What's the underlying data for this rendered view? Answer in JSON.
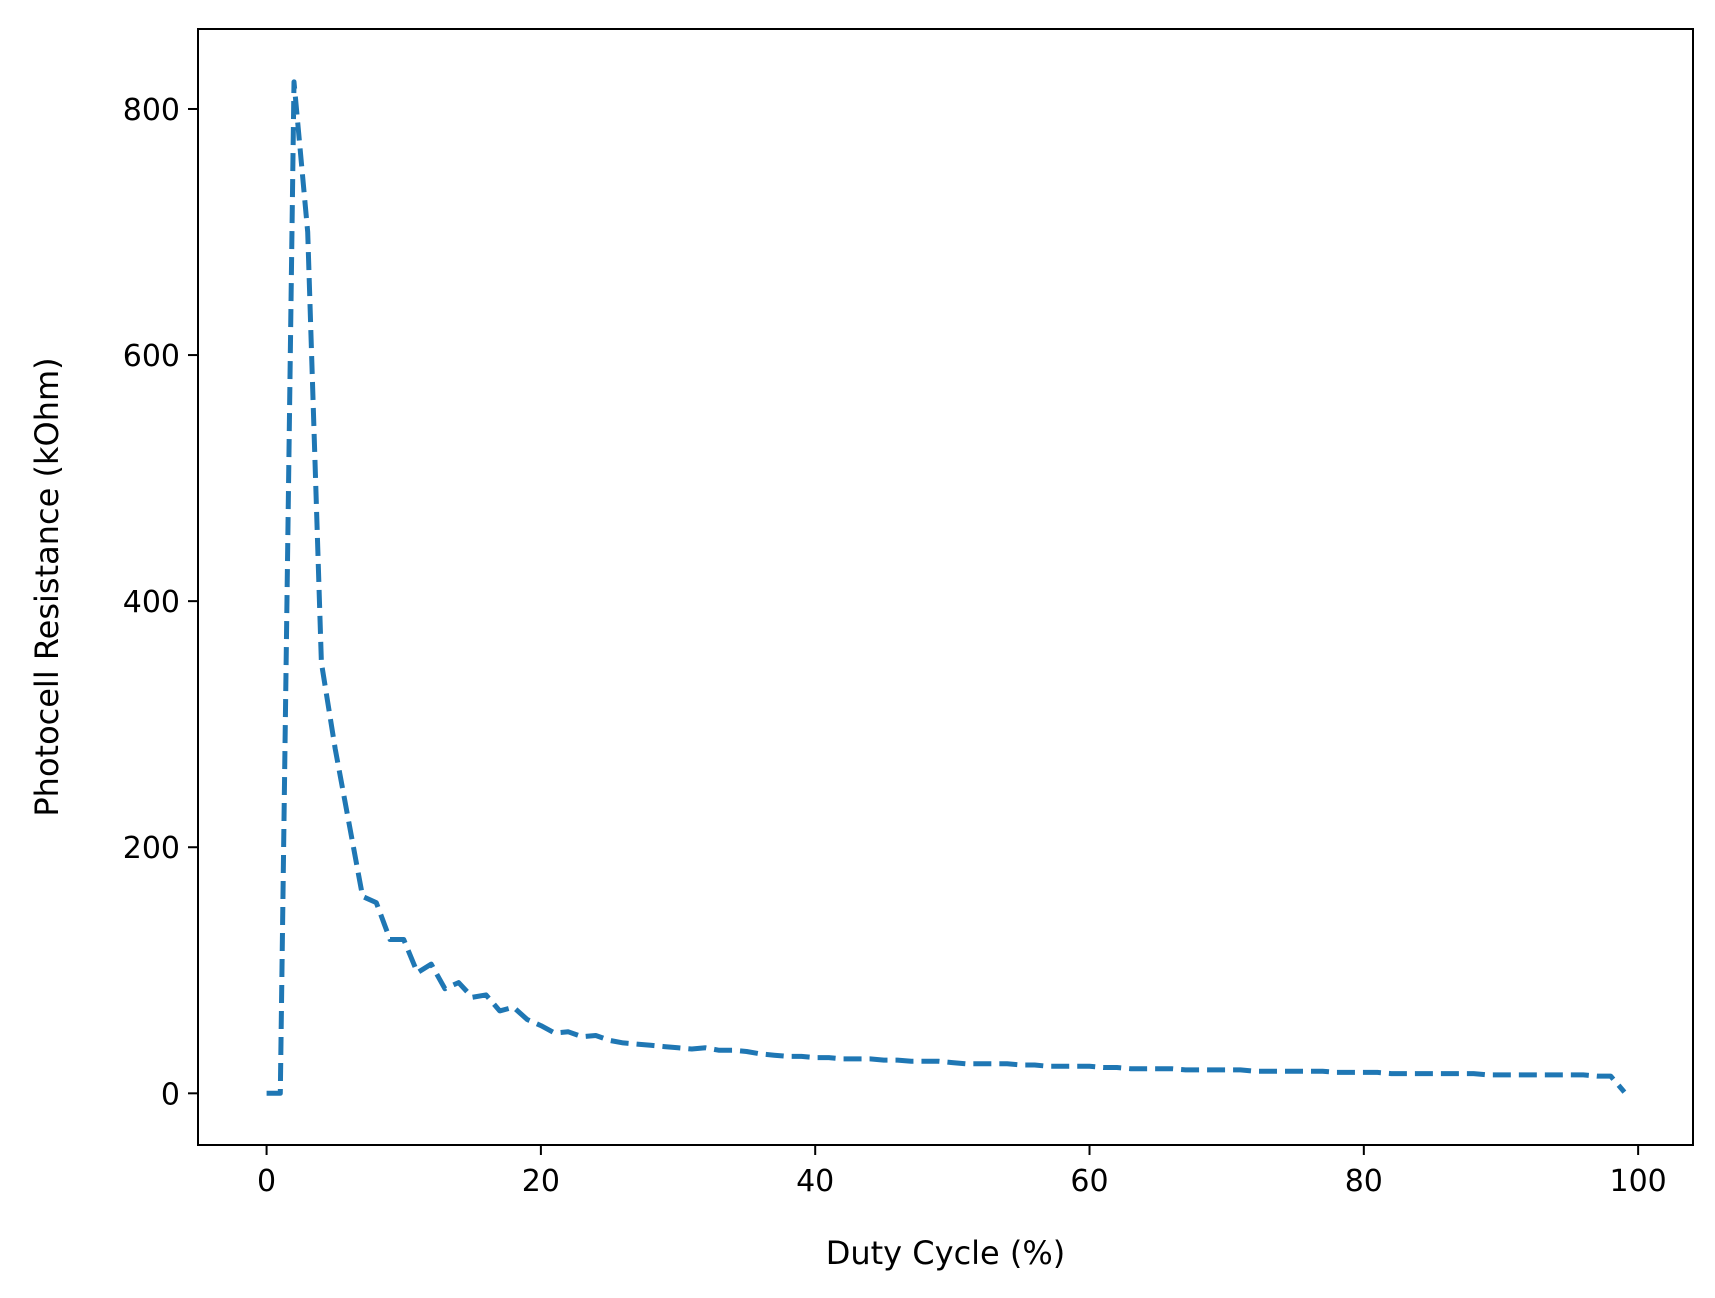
{
  "chart_data": {
    "type": "line",
    "title": "",
    "xlabel": "Duty Cycle (%)",
    "ylabel": "Photocell Resistance (kOhm)",
    "xlim": [
      -5,
      104
    ],
    "ylim": [
      -42,
      865
    ],
    "xticks": [
      0,
      20,
      40,
      60,
      80,
      100
    ],
    "yticks": [
      0,
      200,
      400,
      600,
      800
    ],
    "grid": false,
    "legend": "none",
    "line_style": "dashed",
    "colors": {
      "line": "#1f77b4",
      "axes": "#000000",
      "background": "#ffffff"
    },
    "series": [
      {
        "x": [
          0,
          1,
          2,
          3,
          4,
          5,
          6,
          7,
          8,
          9,
          10,
          11,
          12,
          13,
          14,
          15,
          16,
          17,
          18,
          19,
          20,
          21,
          22,
          23,
          24,
          25,
          26,
          27,
          28,
          29,
          30,
          31,
          32,
          33,
          34,
          35,
          36,
          37,
          38,
          39,
          40,
          41,
          42,
          43,
          44,
          45,
          46,
          47,
          48,
          49,
          50,
          51,
          52,
          53,
          54,
          55,
          56,
          57,
          58,
          59,
          60,
          61,
          62,
          63,
          64,
          65,
          66,
          67,
          68,
          69,
          70,
          71,
          72,
          73,
          74,
          75,
          76,
          77,
          78,
          79,
          80,
          81,
          82,
          83,
          84,
          85,
          86,
          87,
          88,
          89,
          90,
          91,
          92,
          93,
          94,
          95,
          96,
          97,
          98,
          99
        ],
        "values": [
          0,
          0,
          822,
          700,
          350,
          280,
          220,
          160,
          155,
          125,
          125,
          98,
          105,
          85,
          90,
          78,
          80,
          67,
          70,
          60,
          55,
          49,
          50,
          46,
          47,
          43,
          41,
          40,
          39,
          38,
          37,
          36,
          37,
          35,
          35,
          34,
          32,
          31,
          30,
          30,
          29,
          29,
          28,
          28,
          28,
          27,
          27,
          26,
          26,
          26,
          25,
          24,
          24,
          24,
          24,
          23,
          23,
          22,
          22,
          22,
          22,
          21,
          21,
          20,
          20,
          20,
          20,
          19,
          19,
          19,
          19,
          19,
          18,
          18,
          18,
          18,
          18,
          18,
          17,
          17,
          17,
          17,
          16,
          16,
          16,
          16,
          16,
          16,
          16,
          15,
          15,
          15,
          15,
          15,
          15,
          15,
          15,
          14,
          14,
          1
        ]
      }
    ]
  }
}
